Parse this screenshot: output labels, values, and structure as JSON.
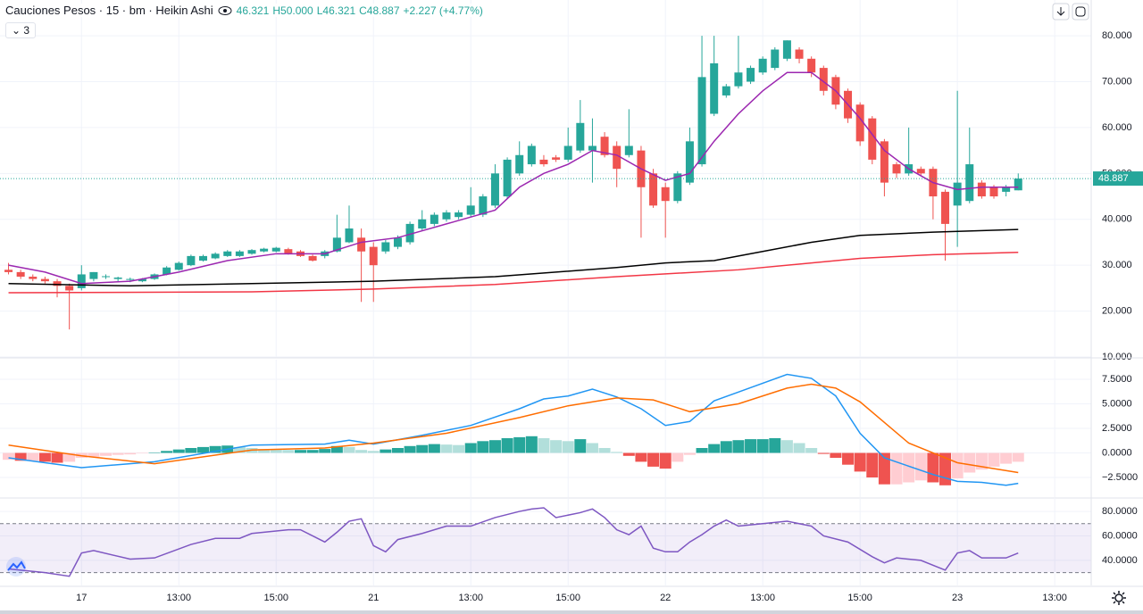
{
  "header": {
    "title": "Cauciones Pesos · 15 · bm · Heikin Ashi",
    "open": "46.321",
    "high": "H50.000",
    "low": "L46.321",
    "close": "C48.887",
    "change": "+2.227 (+4.77%)",
    "indicator_count": "3"
  },
  "chart_data": [
    {
      "type": "candlestick",
      "xlim": [
        -0.7,
        89
      ],
      "ylim": [
        10,
        87.8
      ],
      "yticks": [
        {
          "value": 10,
          "label": "10.000"
        },
        {
          "value": 20,
          "label": "20.000"
        },
        {
          "value": 30,
          "label": "30.000"
        },
        {
          "value": 40,
          "label": "40.000"
        },
        {
          "value": 50,
          "label": "50.000"
        },
        {
          "value": 60,
          "label": "60.000"
        },
        {
          "value": 70,
          "label": "70.000"
        },
        {
          "value": 80,
          "label": "80.000"
        }
      ],
      "grid": true,
      "last_price": 48.887,
      "last_price_color": "#26a69a",
      "ohlc": {
        "up_color": "#26a69a",
        "down_color": "#ef5350",
        "open": [
          29,
          28.5,
          27.5,
          27,
          26.5,
          25.5,
          25,
          27,
          27.5,
          27,
          26.8,
          26.5,
          27,
          28,
          29,
          30,
          31,
          31.5,
          32,
          32,
          32.5,
          33,
          33,
          33.5,
          33,
          32,
          32,
          33,
          35,
          36,
          34,
          33,
          34,
          35,
          38,
          39,
          40,
          40.5,
          41,
          41,
          43,
          45,
          50,
          52,
          53,
          53.5,
          53,
          55,
          55,
          58,
          56,
          54,
          55,
          50,
          47,
          44,
          48,
          52,
          63,
          67,
          69,
          70,
          72,
          73,
          75,
          77,
          75,
          73,
          71,
          68,
          65,
          62,
          57,
          52,
          50,
          51,
          51,
          46,
          43,
          44,
          48,
          47,
          46,
          46.321
        ],
        "high": [
          30.5,
          29,
          28,
          27.5,
          27,
          26,
          30,
          28.5,
          28,
          27.5,
          27.3,
          27.2,
          28.2,
          29.8,
          30.8,
          32.3,
          32.3,
          32.8,
          33.3,
          33.3,
          33.5,
          33.8,
          34,
          33.8,
          33.3,
          32.3,
          33.3,
          41,
          43,
          38,
          35,
          35.5,
          36.5,
          39.5,
          42,
          41.5,
          42,
          42,
          47,
          45.5,
          52,
          53.5,
          57,
          56.5,
          54,
          54,
          60,
          66,
          62,
          59,
          57,
          64,
          56,
          51,
          48,
          50.5,
          60,
          80,
          80,
          69.5,
          80,
          73.5,
          75.5,
          77.5,
          79,
          77.5,
          75.5,
          73.5,
          71.5,
          68.5,
          65.5,
          62.5,
          57.5,
          52.5,
          60,
          51.5,
          51.5,
          46.5,
          68,
          60,
          48.5,
          47.5,
          47.5,
          50
        ],
        "low": [
          28,
          27,
          26.5,
          26,
          23,
          16,
          24.5,
          26.5,
          27,
          26.5,
          26.3,
          26.3,
          26.8,
          27.8,
          28.8,
          29.8,
          30.8,
          31.3,
          31.8,
          31.8,
          32.3,
          32.8,
          32.8,
          32.3,
          31.8,
          30.8,
          31.5,
          32.8,
          34.8,
          22,
          22,
          32.5,
          33.5,
          34.5,
          37.5,
          38.5,
          39.5,
          40,
          40.5,
          40.5,
          42.5,
          44.5,
          49.5,
          51.5,
          51.5,
          52.5,
          52.5,
          54.5,
          48,
          53.5,
          47,
          53.5,
          36,
          42.5,
          36,
          43.5,
          47.5,
          51.5,
          62.5,
          66.5,
          68.5,
          69.5,
          71.5,
          72.5,
          74.5,
          74,
          71,
          67,
          64,
          61,
          56,
          52,
          45,
          49,
          49.5,
          49.5,
          40,
          31,
          34,
          43.5,
          44.5,
          44.5,
          45,
          46.321
        ],
        "close": [
          28.5,
          27.5,
          27,
          26.5,
          25.5,
          24.5,
          28,
          28.5,
          27.6,
          27.3,
          27,
          27,
          28,
          29.5,
          30.5,
          32,
          32,
          32.5,
          33,
          33,
          33.3,
          33.6,
          33.8,
          32.5,
          32,
          31,
          33,
          36,
          38,
          33,
          30,
          35,
          36,
          39,
          40,
          41,
          41.5,
          41.5,
          43,
          45,
          50,
          53,
          54,
          56,
          52,
          53,
          56,
          61,
          56,
          54,
          51,
          56,
          47,
          43,
          44,
          50,
          57,
          71,
          74,
          69,
          72,
          73,
          75,
          77,
          79,
          75,
          72,
          68,
          65,
          62,
          57,
          53,
          48,
          50,
          52,
          50,
          45,
          39,
          48,
          52,
          45,
          45,
          47,
          48.887
        ]
      },
      "series": [
        {
          "color": "#9c27b0",
          "x": [
            0,
            3,
            6,
            10,
            14,
            18,
            22,
            26,
            29,
            32,
            36,
            40,
            42,
            44,
            46,
            48,
            50,
            52,
            54,
            56,
            58,
            60,
            62,
            64,
            66,
            68,
            70,
            72,
            74,
            76,
            78,
            80,
            83
          ],
          "values": [
            30,
            28.5,
            26,
            26.5,
            28.5,
            31,
            32.5,
            32.5,
            35,
            36,
            39,
            42,
            47,
            50,
            52,
            55,
            54,
            51,
            48.5,
            50,
            57,
            63,
            68,
            72,
            72,
            68,
            62,
            55,
            51,
            48,
            46.5,
            47,
            47
          ]
        },
        {
          "color": "#000000",
          "x": [
            0,
            10,
            20,
            30,
            40,
            50,
            54,
            58,
            62,
            66,
            70,
            76,
            83
          ],
          "values": [
            26,
            25.5,
            26,
            26.5,
            27.5,
            29.5,
            30.5,
            31,
            33,
            35,
            36.5,
            37.2,
            37.8
          ]
        },
        {
          "color": "#f23645",
          "x": [
            0,
            20,
            30,
            40,
            50,
            60,
            70,
            76,
            83
          ],
          "values": [
            24,
            24.2,
            24.8,
            25.8,
            27.5,
            29,
            31.5,
            32.3,
            32.8
          ]
        }
      ]
    },
    {
      "type": "macd",
      "xlim": [
        -0.7,
        89
      ],
      "ylim": [
        -4.5,
        9.5
      ],
      "yticks": [
        {
          "value": -2.5,
          "label": "−2.5000"
        },
        {
          "value": 0,
          "label": "0.0000"
        },
        {
          "value": 2.5,
          "label": "2.5000"
        },
        {
          "value": 5,
          "label": "5.0000"
        },
        {
          "value": 7.5,
          "label": "7.5000"
        }
      ],
      "grid": true,
      "histogram": {
        "grow_above": "#26a69a",
        "fall_above": "#b2dfdb",
        "grow_below": "#ffcdd2",
        "fall_below": "#ef5350",
        "values": [
          -0.7,
          -0.8,
          -0.8,
          -0.9,
          -1.0,
          -0.9,
          -0.5,
          -0.4,
          -0.3,
          -0.2,
          -0.15,
          -0.05,
          0.05,
          0.2,
          0.35,
          0.5,
          0.6,
          0.7,
          0.75,
          0.6,
          0.5,
          0.4,
          0.35,
          0.3,
          0.3,
          0.3,
          0.4,
          0.7,
          0.6,
          0.3,
          0.2,
          0.35,
          0.5,
          0.7,
          0.8,
          0.9,
          0.85,
          0.8,
          1.0,
          1.2,
          1.3,
          1.5,
          1.6,
          1.7,
          1.5,
          1.3,
          1.2,
          1.4,
          1.0,
          0.5,
          0.1,
          -0.3,
          -0.9,
          -1.4,
          -1.6,
          -0.9,
          -0.2,
          0.5,
          0.9,
          1.2,
          1.3,
          1.4,
          1.4,
          1.5,
          1.3,
          1.0,
          0.5,
          -0.1,
          -0.5,
          -1.2,
          -1.9,
          -2.5,
          -3.2,
          -3.2,
          -3.0,
          -2.8,
          -3.0,
          -3.3,
          -2.6,
          -2.0,
          -1.7,
          -1.4,
          -1.1,
          -0.9
        ]
      },
      "series": [
        {
          "color": "#2196f3",
          "x": [
            0,
            6,
            12,
            20,
            26,
            28,
            30,
            34,
            38,
            42,
            44,
            46,
            48,
            50,
            52,
            54,
            56,
            58,
            60,
            64,
            66,
            68,
            70,
            72,
            76,
            78,
            80,
            82,
            83
          ],
          "values": [
            -0.5,
            -1.5,
            -0.9,
            0.8,
            0.9,
            1.3,
            0.9,
            1.8,
            2.8,
            4.5,
            5.5,
            5.8,
            6.5,
            5.7,
            4.5,
            2.8,
            3.2,
            5.3,
            6.2,
            8.0,
            7.6,
            5.8,
            2.0,
            -0.5,
            -2.2,
            -2.9,
            -3.0,
            -3.3,
            -3.1
          ]
        },
        {
          "color": "#ff6d00",
          "x": [
            0,
            6,
            12,
            20,
            26,
            30,
            36,
            42,
            46,
            50,
            53,
            56,
            60,
            64,
            66,
            68,
            70,
            74,
            78,
            83
          ],
          "values": [
            0.8,
            -0.3,
            -1.1,
            0.3,
            0.5,
            1.0,
            2.0,
            3.6,
            4.8,
            5.6,
            5.4,
            4.2,
            5.0,
            6.6,
            7.0,
            6.6,
            5.2,
            1.0,
            -1.0,
            -2.0
          ]
        }
      ]
    },
    {
      "type": "rsi",
      "xlim": [
        -0.7,
        89
      ],
      "ylim": [
        19.5,
        91
      ],
      "yticks": [
        {
          "value": 40,
          "label": "40.0000"
        },
        {
          "value": 60,
          "label": "60.0000"
        },
        {
          "value": 80,
          "label": "80.0000"
        }
      ],
      "xticks": [
        {
          "value": 6,
          "label": "17"
        },
        {
          "value": 14,
          "label": "13:00"
        },
        {
          "value": 22,
          "label": "15:00"
        },
        {
          "value": 30,
          "label": "21"
        },
        {
          "value": 38,
          "label": "13:00"
        },
        {
          "value": 46,
          "label": "15:00"
        },
        {
          "value": 54,
          "label": "22"
        },
        {
          "value": 62,
          "label": "13:00"
        },
        {
          "value": 70,
          "label": "15:00"
        },
        {
          "value": 78,
          "label": "23"
        },
        {
          "value": 86,
          "label": "13:00"
        }
      ],
      "grid": true,
      "bands": [
        30,
        70
      ],
      "band_color": "#7e57c2",
      "series": [
        {
          "color": "#7e57c2",
          "x": [
            0,
            3,
            5,
            6,
            7,
            10,
            12,
            15,
            17,
            19,
            20,
            23,
            24,
            26,
            27,
            28,
            29,
            30,
            31,
            32,
            34,
            36,
            38,
            40,
            42,
            43,
            44,
            45,
            47,
            48,
            49,
            50,
            51,
            52,
            53,
            54,
            55,
            56,
            57,
            58,
            59,
            60,
            62,
            64,
            66,
            67,
            69,
            71,
            72,
            73,
            75,
            77,
            78,
            79,
            80,
            82,
            83
          ],
          "values": [
            33,
            30,
            27,
            46,
            48,
            41,
            42,
            53,
            58,
            58,
            62,
            65,
            65,
            55,
            63,
            72,
            74,
            52,
            47,
            57,
            62,
            68,
            68,
            75,
            80,
            82,
            83,
            75,
            79,
            82,
            75,
            65,
            61,
            68,
            50,
            47,
            47,
            55,
            61,
            68,
            73,
            68,
            70,
            72,
            68,
            60,
            55,
            43,
            38,
            42,
            40,
            32,
            46,
            48,
            42,
            42,
            46
          ]
        }
      ]
    }
  ]
}
